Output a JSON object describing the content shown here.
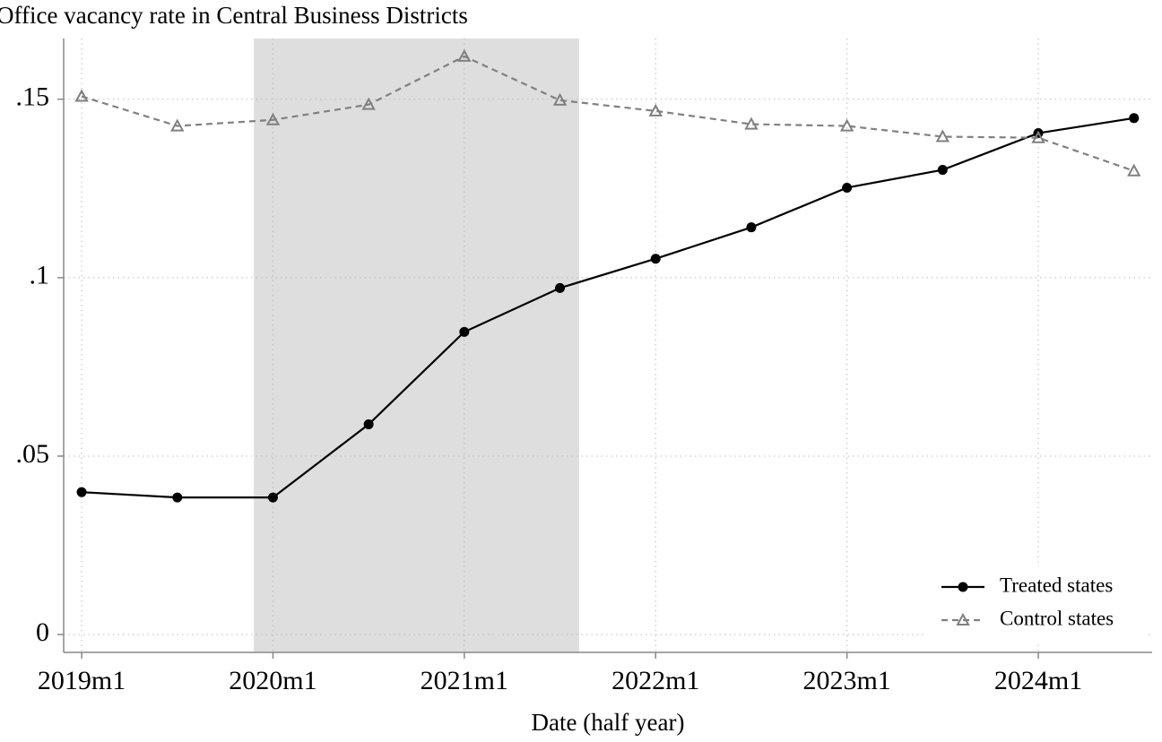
{
  "chart_data": {
    "type": "line",
    "title": "Office vacancy rate in Central Business Districts",
    "x_label": "Date (half year)",
    "x": [
      2019,
      2019.5,
      2020,
      2020.5,
      2021,
      2021.5,
      2022,
      2022.5,
      2023,
      2023.5,
      2024,
      2024.5
    ],
    "series": [
      {
        "name": "Treated states",
        "color": "#000000",
        "marker": "circle",
        "dash": "solid",
        "values": [
          0.0399,
          0.0384,
          0.0384,
          0.0589,
          0.0848,
          0.0971,
          0.1053,
          0.1141,
          0.1252,
          0.1302,
          0.1405,
          0.1447
        ]
      },
      {
        "name": "Control states",
        "color": "#808080",
        "marker": "triangle",
        "dash": "dashed",
        "values": [
          0.1508,
          0.1425,
          0.1442,
          0.1485,
          0.162,
          0.1497,
          0.1467,
          0.143,
          0.1425,
          0.1395,
          0.1392,
          0.1299
        ]
      }
    ],
    "shaded_region": [
      2019.9,
      2021.6
    ],
    "shade_color": "#dedede",
    "xlim": [
      2018.906,
      2024.595
    ],
    "xticks": [
      {
        "value": 2019,
        "label": "2019m1"
      },
      {
        "value": 2020,
        "label": "2020m1"
      },
      {
        "value": 2021,
        "label": "2021m1"
      },
      {
        "value": 2022,
        "label": "2022m1"
      },
      {
        "value": 2023,
        "label": "2023m1"
      },
      {
        "value": 2024,
        "label": "2024m1"
      }
    ],
    "ylim": [
      -0.005,
      0.167
    ],
    "yticks": [
      0,
      {
        "value": 0.05,
        "label": ".05"
      },
      {
        "value": 0.1,
        "label": ".1"
      },
      {
        "value": 0.15,
        "label": ".15"
      }
    ],
    "grid": true,
    "legend_position": "bottom-right"
  }
}
